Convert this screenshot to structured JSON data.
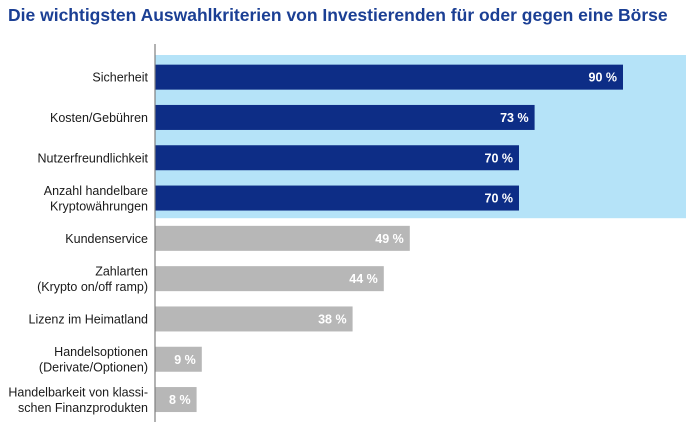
{
  "title": "Die wichtigsten Auswahlkriterien von Investierenden für oder gegen eine Börse",
  "chart_data": {
    "type": "bar",
    "orientation": "horizontal",
    "categories": [
      [
        "Sicherheit"
      ],
      [
        "Kosten/Gebühren"
      ],
      [
        "Nutzerfreundlichkeit"
      ],
      [
        "Anzahl handelbare",
        "Kryptowährungen"
      ],
      [
        "Kundenservice"
      ],
      [
        "Zahlarten",
        "(Krypto on/off ramp)"
      ],
      [
        "Lizenz im Heimatland"
      ],
      [
        "Handelsoptionen",
        "(Derivate/Optionen)"
      ],
      [
        "Handelbarkeit von klassi-",
        "schen Finanzprodukten"
      ]
    ],
    "values": [
      90,
      73,
      70,
      70,
      49,
      44,
      38,
      9,
      8
    ],
    "value_labels": [
      "90 %",
      "73 %",
      "70 %",
      "70 %",
      "49 %",
      "44 %",
      "38 %",
      "9 %",
      "8 %"
    ],
    "highlighted_count": 4,
    "xlim": [
      0,
      100
    ],
    "grid": false,
    "colors": {
      "highlight_bar": "#0d2d86",
      "other_bar": "#b7b7b7",
      "highlight_background": "#b5e3f8",
      "axis": "#7f7f7f",
      "label": "#1a1a1a",
      "value_label": "#ffffff"
    }
  }
}
